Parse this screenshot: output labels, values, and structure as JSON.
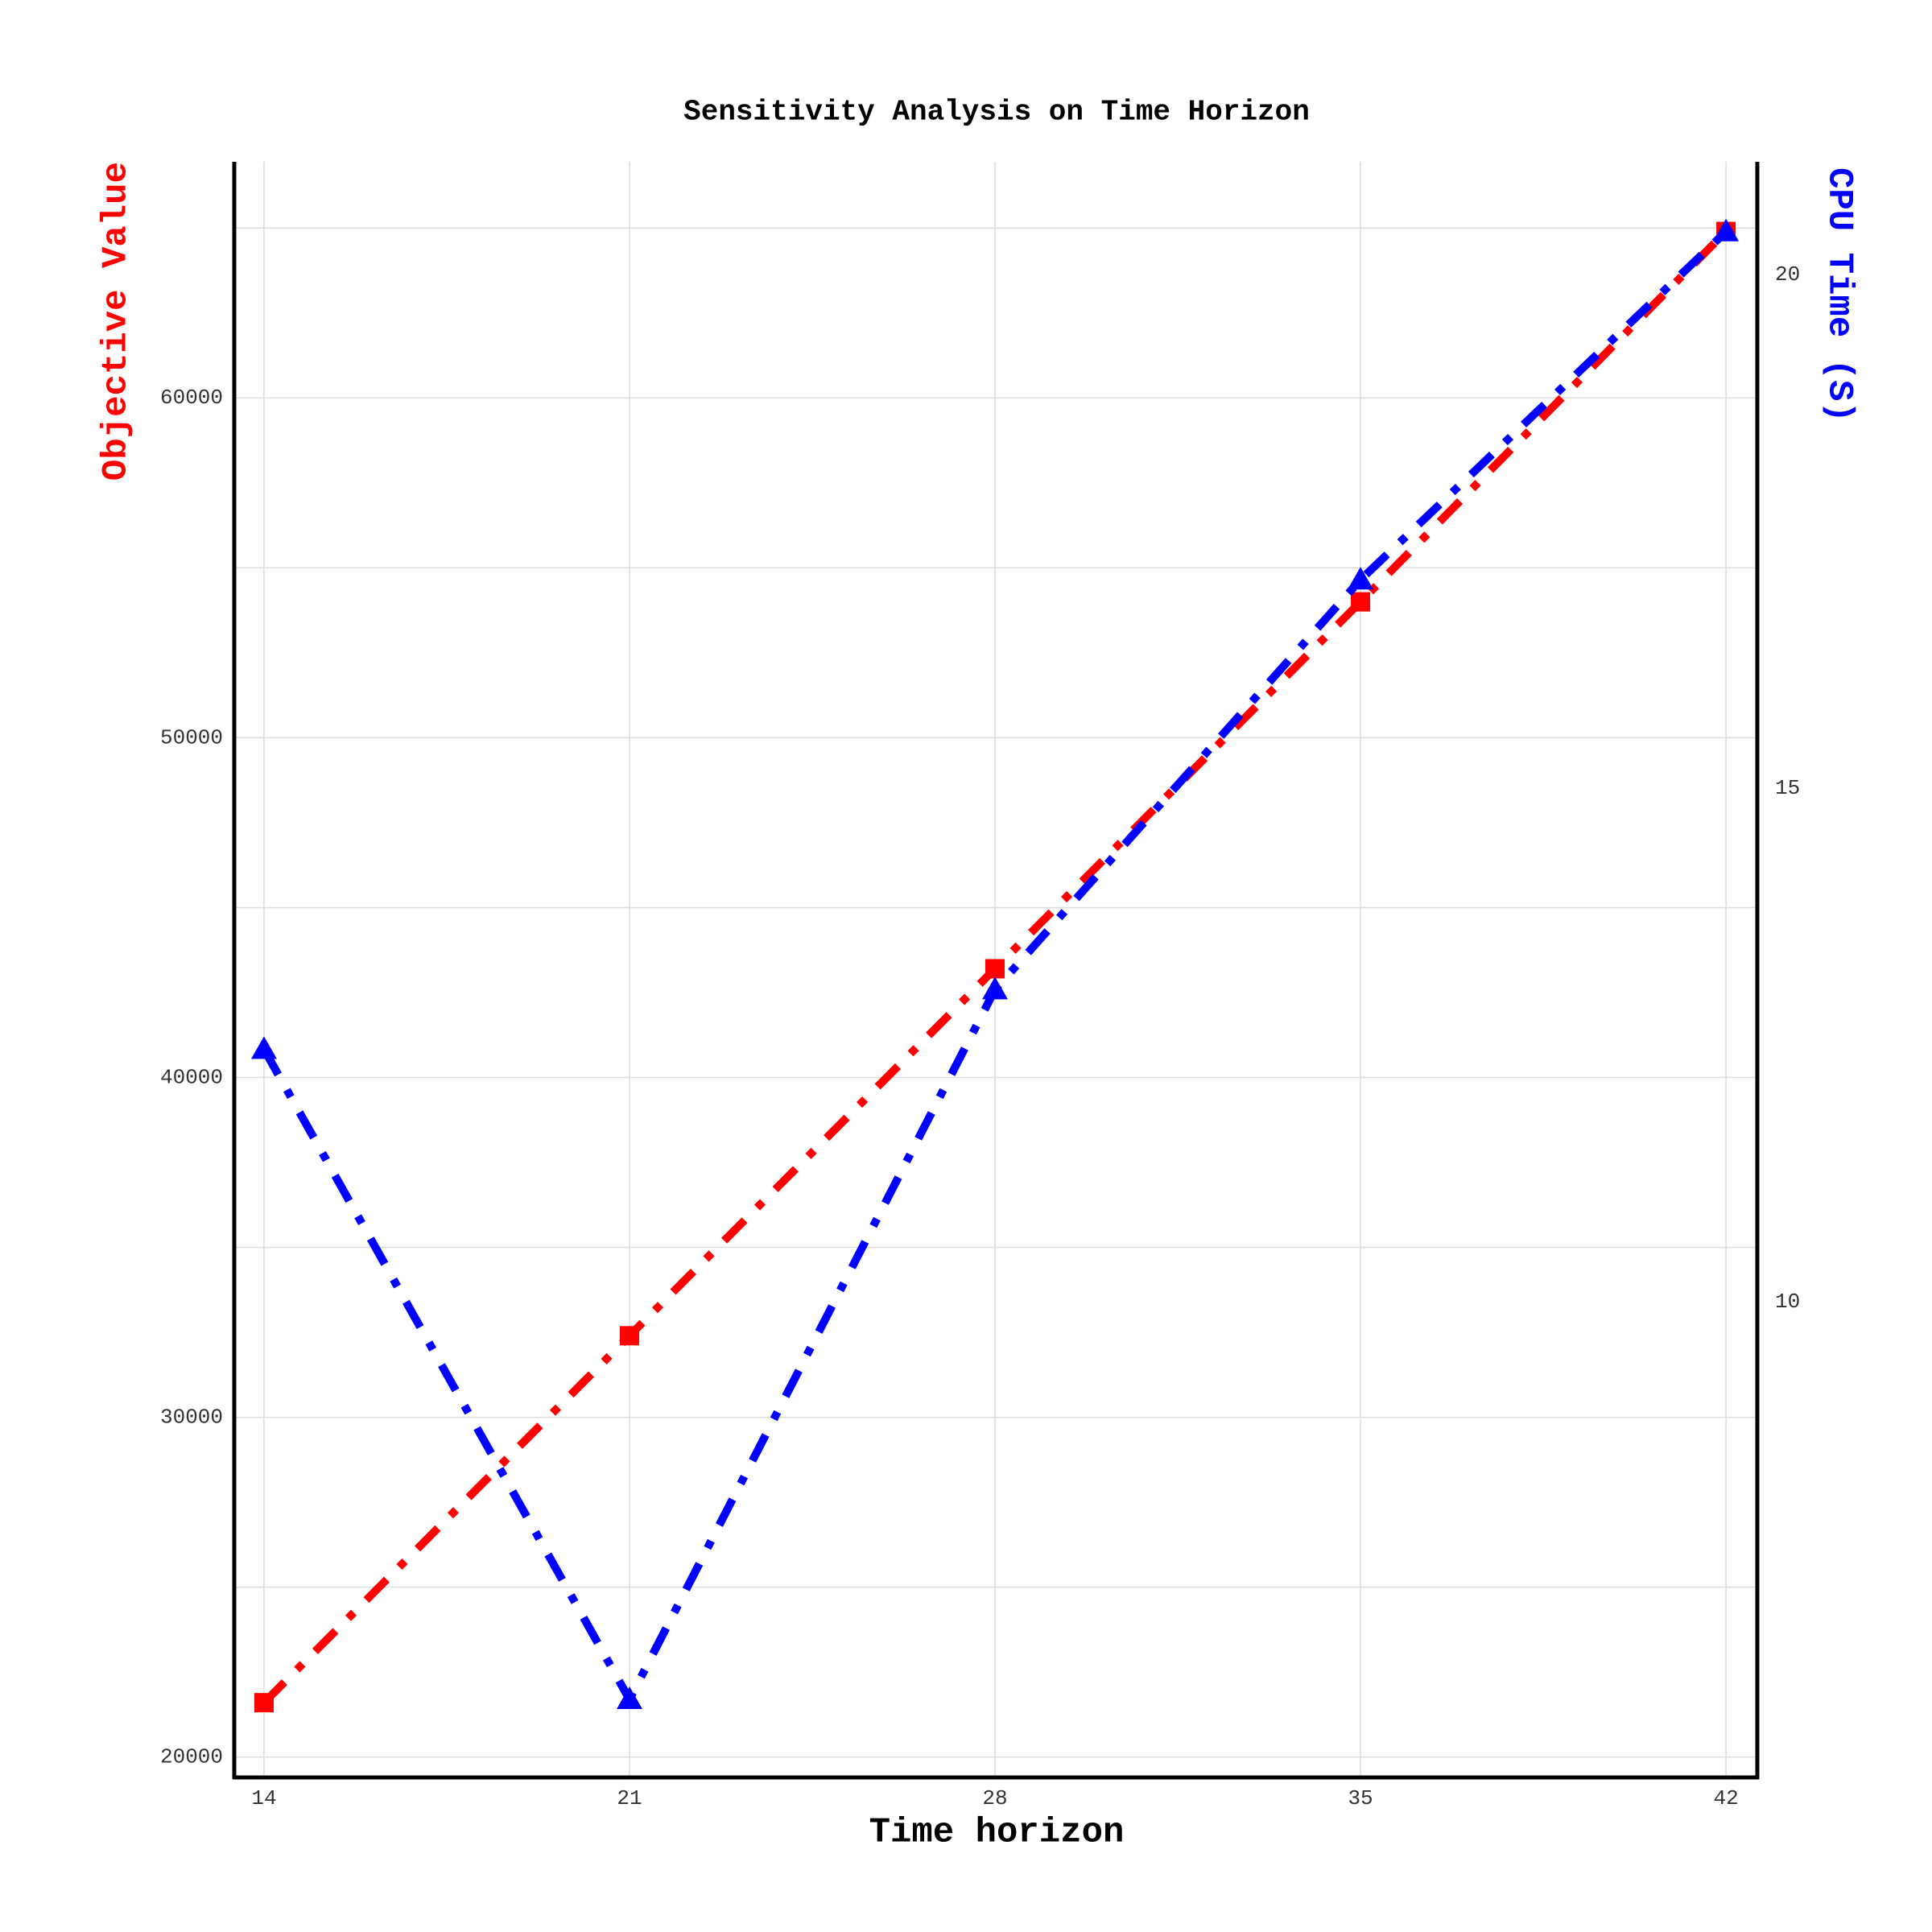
{
  "chart_data": {
    "type": "line",
    "title": "Sensitivity Analysis on Time Horizon",
    "x_label": "Time horizon",
    "y_label": "Objective Value",
    "y2_label": "CPU Time (S)",
    "x": [
      14,
      21,
      28,
      35,
      42
    ],
    "series": [
      {
        "name": "Objective Value",
        "color": "#ff0000",
        "marker": "square",
        "values": [
          21600,
          32400,
          43200,
          54000,
          64900
        ]
      },
      {
        "name": "CPU Time (S)",
        "color": "#0000ff",
        "marker": "triangle",
        "axis": "y2",
        "values": [
          12.46,
          6.13,
          13.04,
          17.03,
          20.42
        ]
      }
    ],
    "xlim": [
      13.43,
      42.6
    ],
    "xticks": [
      14,
      21,
      28,
      35,
      42
    ],
    "ylim": [
      19400,
      66950
    ],
    "yticks": [
      20000,
      30000,
      40000,
      50000,
      60000
    ],
    "ygrid": [
      20000,
      25000,
      30000,
      35000,
      40000,
      45000,
      50000,
      55000,
      60000,
      65000
    ],
    "y2lim": [
      5.37,
      21.1
    ],
    "y2ticks": [
      10,
      15,
      20
    ],
    "grid": true
  }
}
